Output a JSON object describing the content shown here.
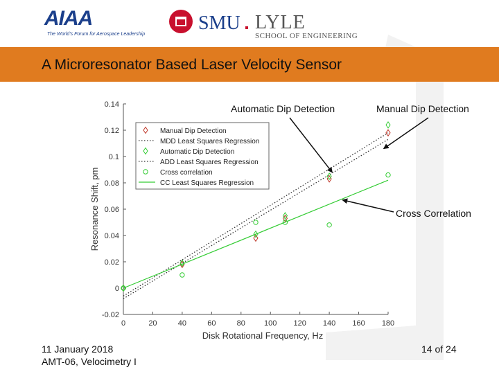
{
  "header": {
    "title": "A Microresonator Based Laser Velocity Sensor"
  },
  "logos": {
    "aiaa_word": "AIAA",
    "aiaa_tagline": "The World's Forum for Aerospace Leadership",
    "smu_word": "SMU",
    "lyle_word": "LYLE",
    "lyle_sub": "SCHOOL OF ENGINEERING"
  },
  "footer": {
    "date": "11 January 2018",
    "session": "AMT-06, Velocimetry I",
    "page": "14 of 24"
  },
  "colors": {
    "banner": "#e07b1f",
    "manual": "#c0392b",
    "automatic": "#33cc33",
    "cross": "#33cc33",
    "cc_fit": "#33cc33",
    "ls_fit": "#333333"
  },
  "chart_data": {
    "type": "scatter",
    "xlabel": "Disk Rotational Frequency, Hz",
    "ylabel": "Resonance Shift, pm",
    "xlim": [
      0,
      180
    ],
    "ylim": [
      -0.02,
      0.14
    ],
    "xticks": [
      "0",
      "20",
      "40",
      "60",
      "80",
      "100",
      "120",
      "140",
      "160",
      "180"
    ],
    "yticks": [
      "-0.02",
      "0",
      "0.02",
      "0.04",
      "0.06",
      "0.08",
      "0.1",
      "0.12",
      "0.14"
    ],
    "grid": false,
    "legend_position": "top-left",
    "series": [
      {
        "name": "Manual Dip Detection",
        "kind": "points",
        "marker": "diamond",
        "color": "#c0392b",
        "x": [
          0,
          40,
          90,
          110,
          140,
          180
        ],
        "y": [
          0.0,
          0.018,
          0.038,
          0.053,
          0.083,
          0.118
        ]
      },
      {
        "name": "MDD Least Squares Regression",
        "kind": "line",
        "style": "dotted",
        "color": "#333333",
        "x": [
          0,
          180
        ],
        "y": [
          -0.008,
          0.113
        ]
      },
      {
        "name": "Automatic Dip Detection",
        "kind": "points",
        "marker": "diamond",
        "color": "#33cc33",
        "x": [
          0,
          40,
          90,
          110,
          140,
          180
        ],
        "y": [
          0.0,
          0.019,
          0.041,
          0.055,
          0.085,
          0.124
        ]
      },
      {
        "name": "ADD Least Squares Regression",
        "kind": "line",
        "style": "dotted",
        "color": "#333333",
        "x": [
          0,
          180
        ],
        "y": [
          -0.006,
          0.118
        ]
      },
      {
        "name": "Cross correlation",
        "kind": "points",
        "marker": "circle",
        "color": "#33cc33",
        "x": [
          0,
          40,
          90,
          110,
          140,
          180
        ],
        "y": [
          0.0,
          0.01,
          0.05,
          0.05,
          0.048,
          0.086
        ]
      },
      {
        "name": "CC Least Squares Regression",
        "kind": "line",
        "style": "solid",
        "color": "#33cc33",
        "x": [
          0,
          180
        ],
        "y": [
          0.0,
          0.082
        ]
      }
    ],
    "annotations": [
      {
        "text": "Automatic Dip Detection",
        "target_x": 142,
        "target_y": 0.088
      },
      {
        "text": "Manual Dip Detection",
        "target_x": 177,
        "target_y": 0.106
      },
      {
        "text": "Cross Correlation",
        "target_x": 149,
        "target_y": 0.067
      }
    ]
  }
}
